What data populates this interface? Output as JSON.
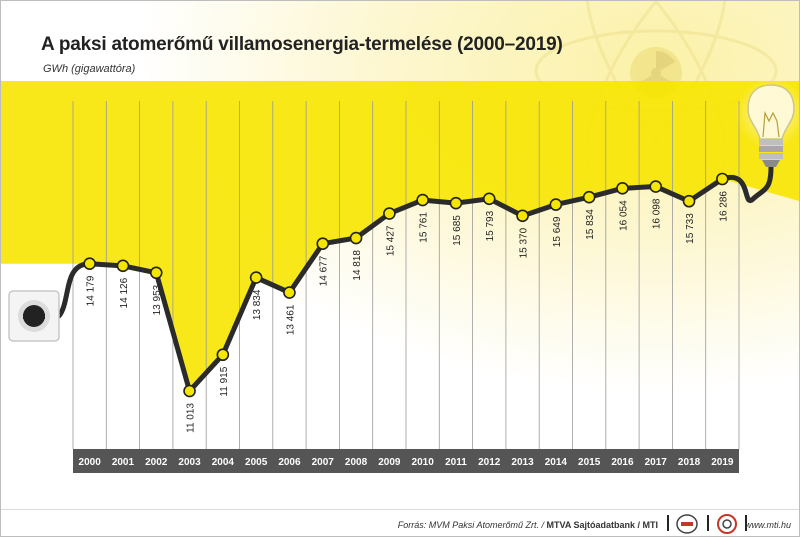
{
  "chart_data": {
    "type": "line",
    "title": "A paksi atomerőmű villamosenergia-termelése (2000–2019)",
    "ylabel": "GWh (gigawattóra)",
    "x": [
      "2000",
      "2001",
      "2002",
      "2003",
      "2004",
      "2005",
      "2006",
      "2007",
      "2008",
      "2009",
      "2010",
      "2011",
      "2012",
      "2013",
      "2014",
      "2015",
      "2016",
      "2017",
      "2018",
      "2019"
    ],
    "values": [
      14179,
      14126,
      13953,
      11013,
      11915,
      13834,
      13461,
      14677,
      14818,
      15427,
      15761,
      15685,
      15793,
      15370,
      15649,
      15834,
      16054,
      16098,
      15733,
      16286
    ],
    "labels": [
      "14 179",
      "14 126",
      "13 953",
      "11 013",
      "11 915",
      "13 834",
      "13 461",
      "14 677",
      "14 818",
      "15 427",
      "15 761",
      "15 685",
      "15 793",
      "15 370",
      "15 649",
      "15 834",
      "16 054",
      "16 098",
      "15 733",
      "16 286"
    ],
    "grid": "vertical",
    "line_color": "#2b2b2b",
    "marker_color": "#f5e600",
    "fill_color": "#f7e600",
    "axis_bar_color": "#555555"
  },
  "footer": {
    "source_prefix": "Forrás: MVM Paksi Atomerőmű Zrt. / ",
    "source_agency": "MTVA Sajtóadatbank / MTI",
    "website": "www.mti.hu"
  },
  "icons": [
    "power-socket-icon",
    "light-bulb-icon",
    "radiation-symbol-icon",
    "mti-logo-icon",
    "mtva-logo-icon"
  ]
}
